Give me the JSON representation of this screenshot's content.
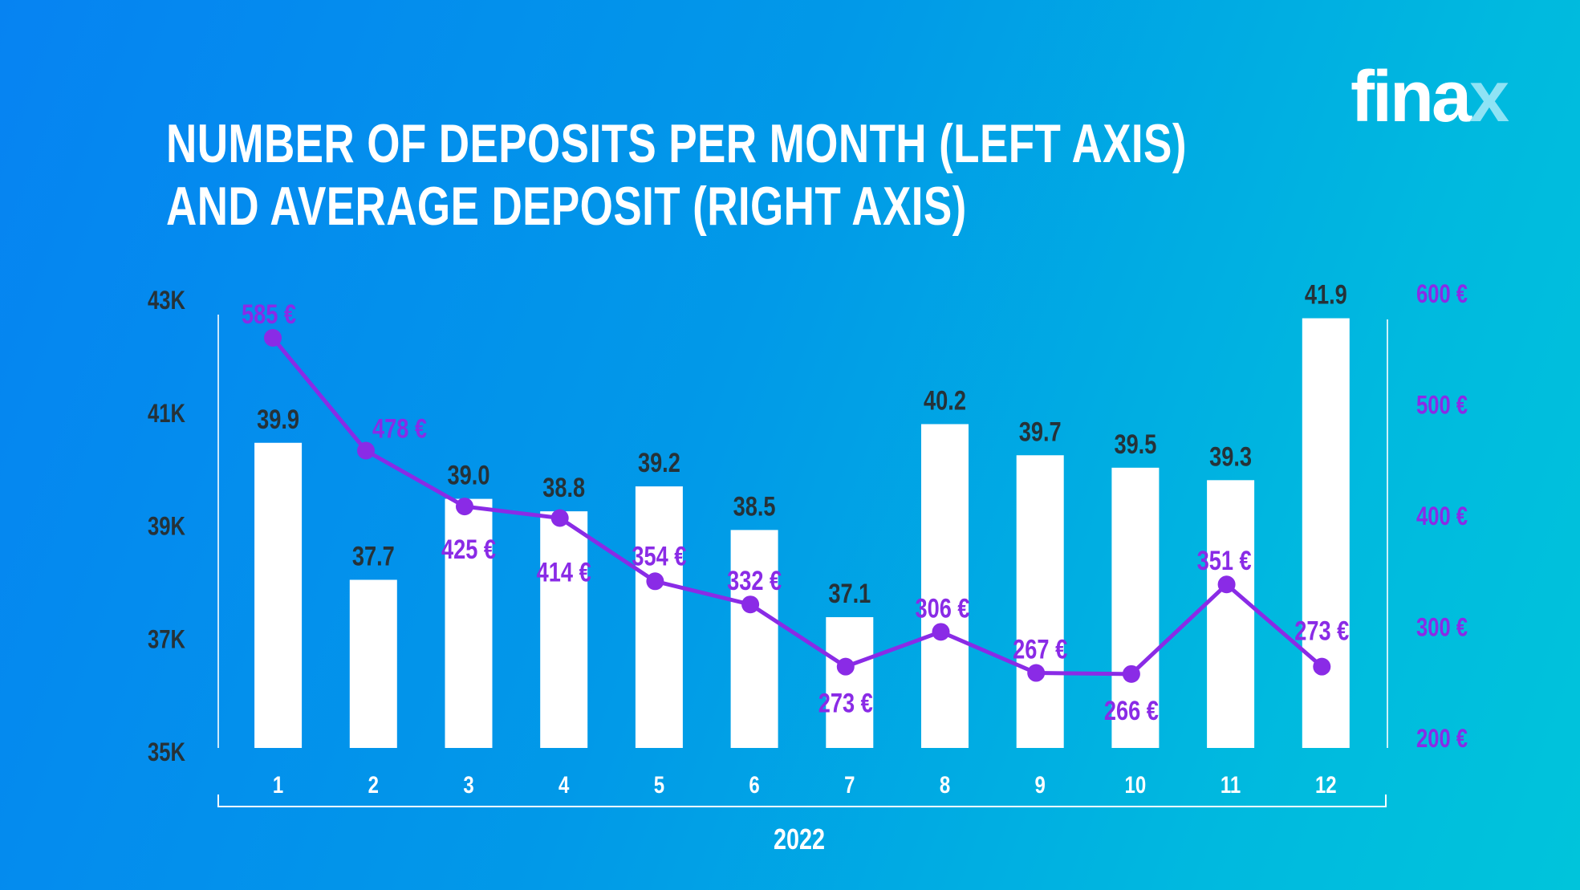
{
  "title_lines": [
    "NUMBER OF DEPOSITS PER MONTH (LEFT AXIS)",
    "AND AVERAGE DEPOSIT (RIGHT AXIS)"
  ],
  "logo": "finax",
  "colors": {
    "bar": "#ffffff",
    "line": "#8a2be6",
    "bar_label": "#263238",
    "background_start": "#0683f2",
    "background_end": "#00c4db"
  },
  "chart_data": {
    "type": "bar+line",
    "title": "NUMBER OF DEPOSITS PER MONTH (LEFT AXIS) AND AVERAGE DEPOSIT (RIGHT AXIS)",
    "xlabel": "2022",
    "categories": [
      "1",
      "2",
      "3",
      "4",
      "5",
      "6",
      "7",
      "8",
      "9",
      "10",
      "11",
      "12"
    ],
    "left_axis": {
      "ticks": [
        "35K",
        "37K",
        "39K",
        "41K",
        "43K"
      ],
      "range": [
        35,
        43
      ]
    },
    "right_axis": {
      "ticks": [
        "200 €",
        "300 €",
        "400 €",
        "500 €",
        "600 €"
      ],
      "range": [
        200,
        600
      ]
    },
    "series": [
      {
        "type": "bar",
        "axis": "left",
        "unit": "K",
        "values": [
          39.9,
          37.7,
          39.0,
          38.8,
          39.2,
          38.5,
          37.1,
          40.2,
          39.7,
          39.5,
          39.3,
          41.9
        ],
        "labels": [
          "39.9",
          "37.7",
          "39.0",
          "38.8",
          "39.2",
          "38.5",
          "37.1",
          "40.2",
          "39.7",
          "39.5",
          "39.3",
          "41.9"
        ]
      },
      {
        "type": "line",
        "axis": "right",
        "unit": "€",
        "values": [
          585,
          478,
          425,
          414,
          354,
          332,
          273,
          306,
          267,
          266,
          351,
          273
        ],
        "labels": [
          "585 €",
          "478 €",
          "425 €",
          "414 €",
          "354 €",
          "332 €",
          "273 €",
          "306 €",
          "267 €",
          "266 €",
          "351 €",
          "273 €"
        ]
      }
    ],
    "grid": false,
    "legend": "none"
  }
}
